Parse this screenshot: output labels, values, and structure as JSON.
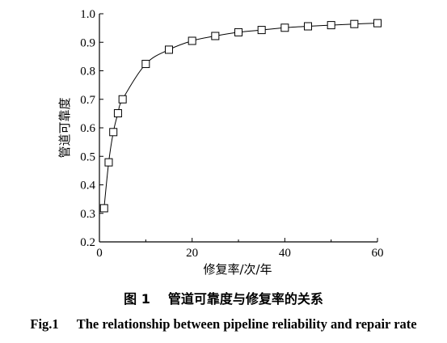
{
  "chart_data": {
    "type": "scatter",
    "xlabel": "修复率/次/年",
    "ylabel": "管道可靠度",
    "xlim": [
      0,
      60
    ],
    "ylim": [
      0.2,
      1.0
    ],
    "xticks": [
      0,
      20,
      40,
      60
    ],
    "yticks": [
      0.2,
      0.3,
      0.4,
      0.5,
      0.6,
      0.7,
      0.8,
      0.9,
      1.0
    ],
    "xtick_labels": [
      "0",
      "20",
      "40",
      "60"
    ],
    "ytick_labels": [
      "0.2",
      "0.3",
      "0.4",
      "0.5",
      "0.6",
      "0.7",
      "0.8",
      "0.9",
      "1.0"
    ],
    "grid": false,
    "marker": "open-square",
    "fit_line": true,
    "x": [
      1,
      2,
      3,
      4,
      5,
      10,
      15,
      20,
      25,
      30,
      35,
      40,
      45,
      50,
      55,
      60
    ],
    "y": [
      0.318,
      0.479,
      0.585,
      0.651,
      0.7,
      0.824,
      0.874,
      0.905,
      0.922,
      0.935,
      0.943,
      0.951,
      0.956,
      0.96,
      0.964,
      0.967
    ]
  },
  "caption": {
    "cn_number": "图 1",
    "cn_title": "管道可靠度与修复率的关系",
    "en_number": "Fig.1",
    "en_title": "The relationship between pipeline reliability and repair rate"
  }
}
